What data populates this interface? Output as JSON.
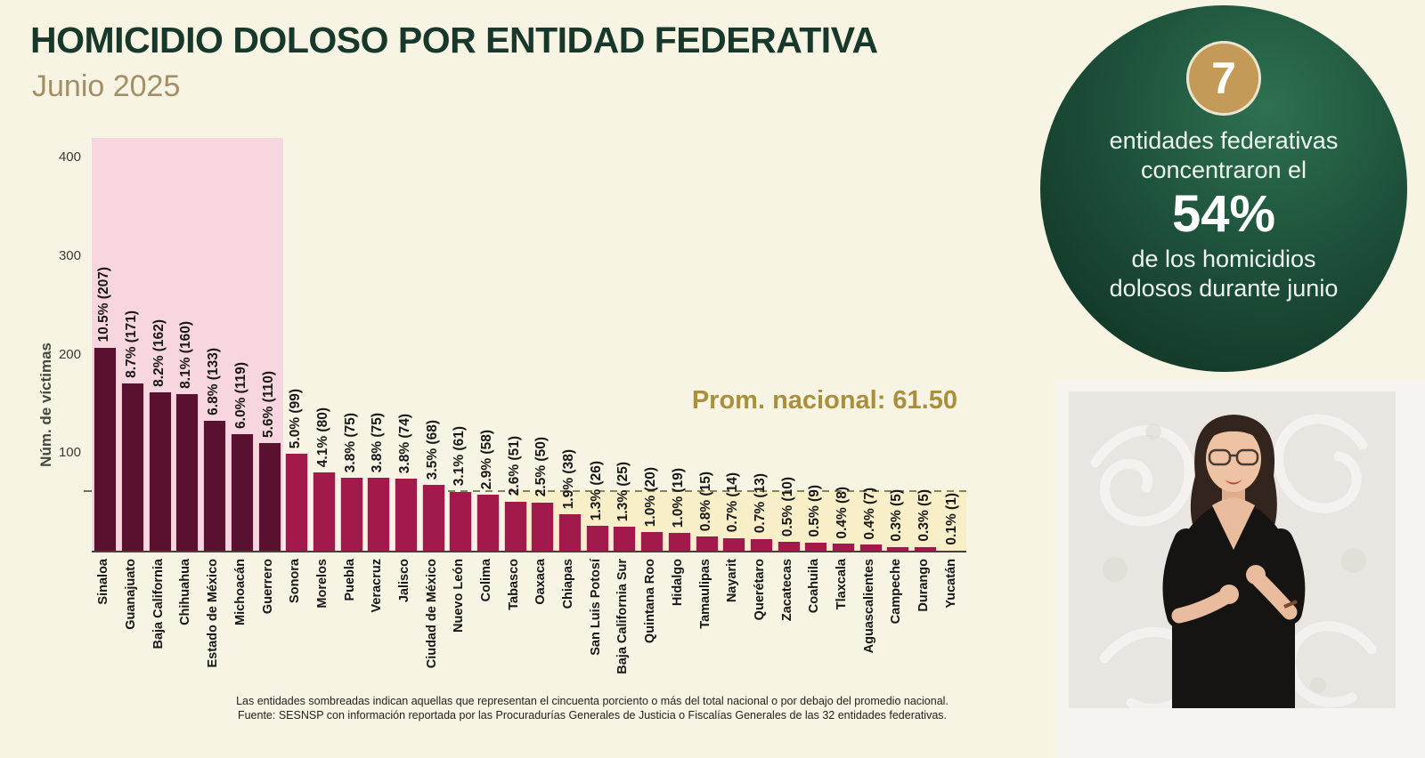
{
  "header": {
    "title": "HOMICIDIO DOLOSO POR ENTIDAD FEDERATIVA",
    "subtitle": "Junio 2025"
  },
  "chart_data": {
    "type": "bar",
    "title": "HOMICIDIO DOLOSO POR ENTIDAD FEDERATIVA",
    "subtitle": "Junio 2025",
    "ylabel": "Núm. de víctimas",
    "yticks": [
      400,
      300,
      200,
      100
    ],
    "ylim": [
      0,
      420
    ],
    "grid": false,
    "legend": "none",
    "national_average": 61.5,
    "national_average_label": "Prom. nacional: 61.50",
    "shaded_top_entities": 7,
    "below_average_band_start_index": 15,
    "categories": [
      "Sinaloa",
      "Guanajuato",
      "Baja California",
      "Chihuahua",
      "Estado de México",
      "Michoacán",
      "Guerrero",
      "Sonora",
      "Morelos",
      "Puebla",
      "Veracruz",
      "Jalisco",
      "Ciudad de México",
      "Nuevo León",
      "Colima",
      "Tabasco",
      "Oaxaca",
      "Chiapas",
      "San Luis Potosí",
      "Baja California Sur",
      "Quintana Roo",
      "Hidalgo",
      "Tamaulipas",
      "Nayarit",
      "Querétaro",
      "Zacatecas",
      "Coahuila",
      "Tlaxcala",
      "Aguascalientes",
      "Campeche",
      "Durango",
      "Yucatán"
    ],
    "values": [
      207,
      171,
      162,
      160,
      133,
      119,
      110,
      99,
      80,
      75,
      75,
      74,
      68,
      61,
      58,
      51,
      50,
      38,
      26,
      25,
      20,
      19,
      15,
      14,
      13,
      10,
      9,
      8,
      7,
      5,
      5,
      1
    ],
    "bar_labels": [
      "10.5% (207)",
      "8.7% (171)",
      "8.2% (162)",
      "8.1% (160)",
      "6.8% (133)",
      "6.0% (119)",
      "5.6% (110)",
      "5.0% (99)",
      "4.1% (80)",
      "3.8% (75)",
      "3.8% (75)",
      "3.8% (74)",
      "3.5% (68)",
      "3.1% (61)",
      "2.9% (58)",
      "2.6% (51)",
      "2.5% (50)",
      "1.9% (38)",
      "1.3% (26)",
      "1.3% (25)",
      "1.0% (20)",
      "1.0% (19)",
      "0.8% (15)",
      "0.7% (14)",
      "0.7% (13)",
      "0.5% (10)",
      "0.5% (9)",
      "0.4% (8)",
      "0.4% (7)",
      "0.3% (5)",
      "0.3% (5)",
      "0.1% (1)"
    ],
    "colors": {
      "bar_dark": "#5a1130",
      "bar_light": "#a21a4b",
      "band_pink": "#f8d6e0",
      "band_yellow": "#f8efc9",
      "avg_line": "#85855e",
      "avg_text": "#a8903f",
      "title_green": "#17382a",
      "subtitle_tan": "#a38f66"
    }
  },
  "highlight_circle": {
    "number": "7",
    "line1": "entidades federativas",
    "line2": "concentraron el",
    "percent": "54%",
    "line3": "de los homicidios",
    "line4": "dolosos durante junio"
  },
  "footnotes": {
    "line1": "Las entidades sombreadas indican aquellas que representan el cincuenta porciento o más del total nacional o por debajo del promedio nacional.",
    "line2": "Fuente: SESNSP con información reportada por las Procuradurías Generales de Justicia o Fiscalías Generales de las 32 entidades federativas."
  }
}
